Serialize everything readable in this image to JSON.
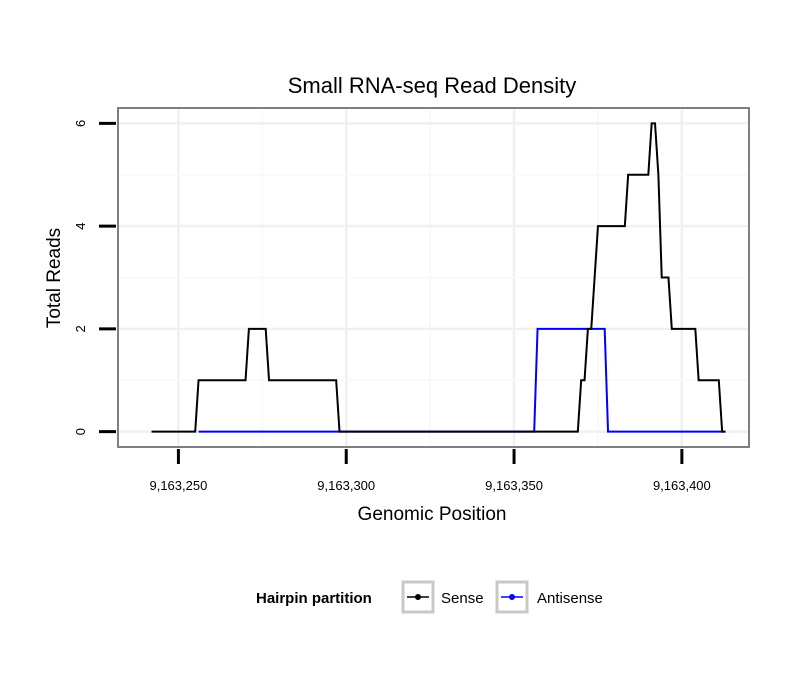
{
  "chart_data": {
    "type": "line",
    "title": "Small RNA-seq Read Density",
    "xlabel": "Genomic Position",
    "ylabel": "Total Reads",
    "xlim": [
      9163232,
      9163420
    ],
    "ylim": [
      -0.3,
      6.3
    ],
    "x_ticks": [
      9163250,
      9163300,
      9163350,
      9163400
    ],
    "x_tick_labels": [
      "9,163,250",
      "9,163,300",
      "9,163,350",
      "9,163,400"
    ],
    "y_ticks": [
      0,
      2,
      4,
      6
    ],
    "y_tick_labels": [
      "0",
      "2",
      "4",
      "6"
    ],
    "grid": true,
    "legend": {
      "title": "Hairpin partition",
      "position": "bottom"
    },
    "series": [
      {
        "name": "Sense",
        "color": "#000000",
        "points": [
          [
            9163242,
            0
          ],
          [
            9163255,
            0
          ],
          [
            9163256,
            1
          ],
          [
            9163270,
            1
          ],
          [
            9163271,
            2
          ],
          [
            9163276,
            2
          ],
          [
            9163277,
            1
          ],
          [
            9163297,
            1
          ],
          [
            9163298,
            0
          ],
          [
            9163369,
            0
          ],
          [
            9163370,
            1
          ],
          [
            9163371,
            1
          ],
          [
            9163372,
            2
          ],
          [
            9163373,
            2
          ],
          [
            9163374,
            3
          ],
          [
            9163375,
            4
          ],
          [
            9163383,
            4
          ],
          [
            9163384,
            5
          ],
          [
            9163390,
            5
          ],
          [
            9163391,
            6
          ],
          [
            9163392,
            6
          ],
          [
            9163393,
            5
          ],
          [
            9163394,
            3
          ],
          [
            9163396,
            3
          ],
          [
            9163397,
            2
          ],
          [
            9163404,
            2
          ],
          [
            9163405,
            1
          ],
          [
            9163411,
            1
          ],
          [
            9163412,
            0
          ],
          [
            9163413,
            0
          ]
        ]
      },
      {
        "name": "Antisense",
        "color": "#0000ff",
        "points": [
          [
            9163256,
            0
          ],
          [
            9163356,
            0
          ],
          [
            9163357,
            2
          ],
          [
            9163377,
            2
          ],
          [
            9163378,
            0
          ],
          [
            9163413,
            0
          ]
        ]
      }
    ]
  }
}
